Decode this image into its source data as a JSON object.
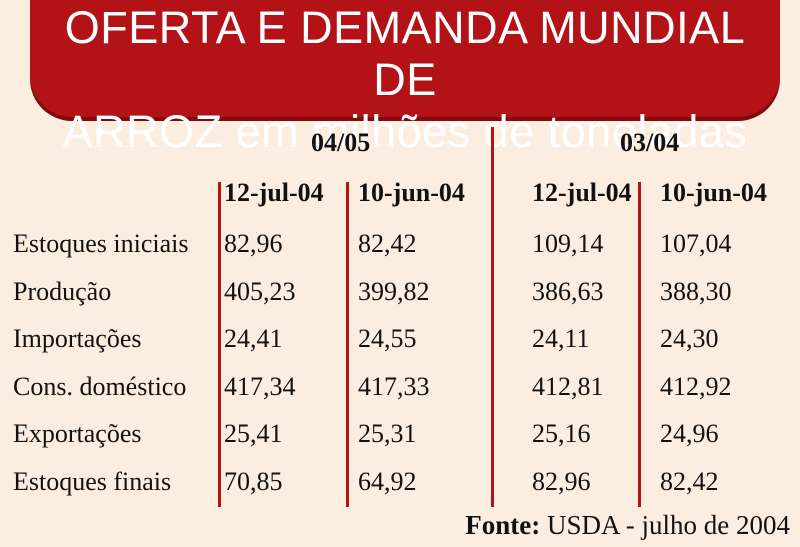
{
  "chart_data": {
    "type": "table",
    "title": "OFERTA E DEMANDA MUNDIAL DE ARROZ em milhões de toneladas",
    "title_lines": [
      "OFERTA E DEMANDA MUNDIAL DE",
      "ARROZ em milhões de toneladas"
    ],
    "periods": [
      {
        "label": "04/05",
        "columns": [
          "12-jul-04",
          "10-jun-04"
        ]
      },
      {
        "label": "03/04",
        "columns": [
          "12-jul-04",
          "10-jun-04"
        ]
      }
    ],
    "rows": [
      {
        "label": "Estoques iniciais",
        "values": [
          "82,96",
          "82,42",
          "109,14",
          "107,04"
        ]
      },
      {
        "label": "Produção",
        "values": [
          "405,23",
          "399,82",
          "386,63",
          "388,30"
        ]
      },
      {
        "label": "Importações",
        "values": [
          "24,41",
          "24,55",
          "24,11",
          "24,30"
        ]
      },
      {
        "label": "Cons. doméstico",
        "values": [
          "417,34",
          "417,33",
          "412,81",
          "412,92"
        ]
      },
      {
        "label": "Exportações",
        "values": [
          "25,41",
          "25,31",
          "25,16",
          "24,96"
        ]
      },
      {
        "label": "Estoques finais",
        "values": [
          "70,85",
          "64,92",
          "82,96",
          "82,42"
        ]
      }
    ],
    "source_label": "Fonte:",
    "source_text": "USDA - julho de 2004"
  },
  "colors": {
    "title_background": "#b31216",
    "page_background": "#fbeee0",
    "divider": "#b31216"
  }
}
